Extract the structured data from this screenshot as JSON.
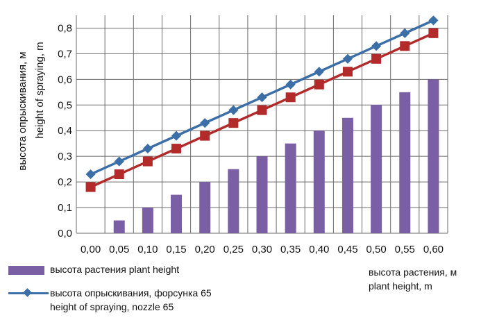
{
  "chart_data": {
    "type": "bar+line",
    "categories": [
      "0,00",
      "0,05",
      "0,10",
      "0,15",
      "0,20",
      "0,25",
      "0,30",
      "0,35",
      "0,40",
      "0,45",
      "0,50",
      "0,55",
      "0,60"
    ],
    "x": [
      0.0,
      0.05,
      0.1,
      0.15,
      0.2,
      0.25,
      0.3,
      0.35,
      0.4,
      0.45,
      0.5,
      0.55,
      0.6
    ],
    "series": [
      {
        "name": "высота растения   plant height",
        "kind": "bar",
        "color": "#7a5fa5",
        "values": [
          0.0,
          0.05,
          0.1,
          0.15,
          0.2,
          0.25,
          0.3,
          0.35,
          0.4,
          0.45,
          0.5,
          0.55,
          0.6
        ]
      },
      {
        "name": "высота опрыскивания, форсунка 65 height of spraying, nozzle 65",
        "kind": "line",
        "marker": "diamond",
        "color": "#3c6ea8",
        "values": [
          0.23,
          0.28,
          0.33,
          0.38,
          0.43,
          0.48,
          0.53,
          0.58,
          0.63,
          0.68,
          0.73,
          0.78,
          0.83
        ]
      },
      {
        "kind": "line",
        "marker": "square",
        "color": "#b22a2a",
        "values": [
          0.18,
          0.23,
          0.28,
          0.33,
          0.38,
          0.43,
          0.48,
          0.53,
          0.58,
          0.63,
          0.68,
          0.73,
          0.78
        ]
      }
    ],
    "yticks": [
      "0,0",
      "0,1",
      "0,2",
      "0,3",
      "0,4",
      "0,5",
      "0,6",
      "0,7",
      "0,8"
    ],
    "ylim": [
      0,
      0.85
    ],
    "grid": true,
    "ylabel_ru": "высота опрыскивания, м",
    "ylabel_en": "height of spraying, m",
    "xlabel_ru": "высота растения, м",
    "xlabel_en": "plant height, m"
  },
  "legend": {
    "bar_label": "высота растения   plant height",
    "line_label_ru": "высота опрыскивания, форсунка 65",
    "line_label_en": "height of spraying, nozzle 65"
  }
}
